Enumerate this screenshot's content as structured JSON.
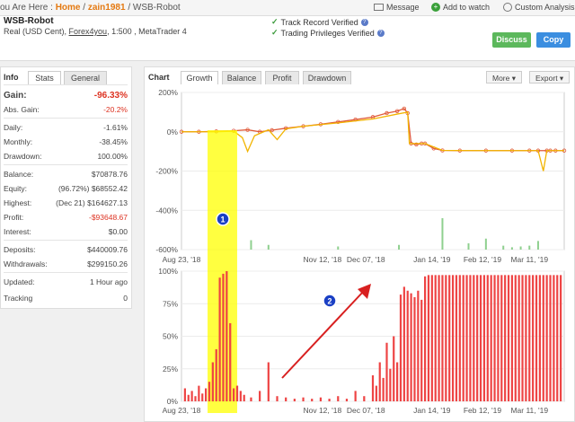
{
  "breadcrumb": {
    "prefix": "ou Are Here : ",
    "home": "Home",
    "sep1": " / ",
    "user": "zain1981",
    "sep2": " / ",
    "current": "WSB-Robot"
  },
  "topnav": {
    "message": "Message",
    "watch": "Add to watch",
    "custom": "Custom Analysis"
  },
  "system": {
    "name": "WSB-Robot",
    "account_type": "Real (USD Cent), ",
    "broker": "Forex4you",
    "details": ", 1:500 , MetaTrader 4",
    "verif1": "Track Record Verified",
    "verif2": "Trading Privileges Verified",
    "qmark": "?"
  },
  "buttons": {
    "discuss": "Discuss",
    "copy": "Copy"
  },
  "info": {
    "title": "Info",
    "tab_stats": "Stats",
    "tab_general": "General",
    "gain_label": "Gain:",
    "gain_value": "-96.33%",
    "abs_gain_label": "Abs. Gain:",
    "abs_gain_value": "-20.2%",
    "daily_label": "Daily:",
    "daily_value": "-1.61%",
    "monthly_label": "Monthly:",
    "monthly_value": "-38.45%",
    "drawdown_label": "Drawdown:",
    "drawdown_value": "100.00%",
    "balance_label": "Balance:",
    "balance_value": "$70878.76",
    "equity_label": "Equity:",
    "equity_value": "(96.72%) $68552.42",
    "highest_label": "Highest:",
    "highest_value": "(Dec 21) $164627.13",
    "profit_label": "Profit:",
    "profit_value": "-$93648.67",
    "interest_label": "Interest:",
    "interest_value": "$0.00",
    "deposits_label": "Deposits:",
    "deposits_value": "$440009.76",
    "withdrawals_label": "Withdrawals:",
    "withdrawals_value": "$299150.26",
    "updated_label": "Updated:",
    "updated_value": "1 Hour ago",
    "tracking_label": "Tracking",
    "tracking_value": "0"
  },
  "chart": {
    "title": "Chart",
    "tabs": [
      "Growth",
      "Balance",
      "Profit",
      "Drawdown"
    ],
    "more": "More ▾",
    "export": "Export ▾",
    "annotation1": "1",
    "annotation2": "2"
  },
  "colors": {
    "accent": "#e47911",
    "discuss": "#5cb85c",
    "copy": "#3b8ee0",
    "growth_line": "#e05a3a",
    "growth_alt": "#f2b400",
    "drawdown_bars": "#ee4444",
    "volume_bars": "#8fd08f",
    "highlight": "#ffff00",
    "arrow": "#d82020"
  },
  "chart_data": [
    {
      "type": "line",
      "ylim": [
        -600,
        200
      ],
      "yticks": [
        "200%",
        "0%",
        "-200%",
        "-400%",
        "-600%"
      ],
      "x_ticks": [
        "Aug 23, '18",
        "Nov 12, '18",
        "Dec 07, '18",
        "Jan 14, '19",
        "Feb 12, '19",
        "Mar 11, '19"
      ],
      "x_tick_days": [
        0,
        81,
        106,
        144,
        173,
        200
      ],
      "x_range_days": [
        0,
        220
      ],
      "series": [
        {
          "x": [
            0,
            10,
            20,
            30,
            38,
            45,
            52,
            60,
            70,
            80,
            90,
            100,
            110,
            118,
            124,
            128,
            130,
            132,
            135,
            138,
            140,
            145,
            150,
            160,
            175,
            190,
            200,
            205,
            210,
            212,
            215,
            220
          ],
          "y": [
            0,
            0,
            2,
            5,
            10,
            0,
            8,
            18,
            28,
            38,
            50,
            62,
            75,
            95,
            105,
            118,
            95,
            -60,
            -65,
            -60,
            -60,
            -85,
            -95,
            -96,
            -96,
            -96,
            -96,
            -96,
            -96,
            -96,
            -96,
            -96
          ]
        },
        {
          "x": [
            0,
            20,
            30,
            35,
            38,
            42,
            50,
            55,
            60,
            70,
            90,
            110,
            124,
            130,
            131,
            140,
            150,
            175,
            200,
            205,
            208,
            210,
            215,
            220
          ],
          "y": [
            0,
            0,
            3,
            -30,
            -100,
            -20,
            10,
            -40,
            15,
            28,
            45,
            65,
            90,
            100,
            -60,
            -60,
            -95,
            -96,
            -96,
            -96,
            -200,
            -96,
            -96,
            -96
          ]
        }
      ],
      "volume": {
        "x": [
          40,
          50,
          90,
          125,
          150,
          165,
          175,
          185,
          190,
          195,
          200,
          205
        ],
        "y": [
          60,
          30,
          20,
          30,
          200,
          40,
          70,
          25,
          15,
          20,
          25,
          55
        ]
      }
    },
    {
      "type": "bar",
      "ylim": [
        0,
        100
      ],
      "yticks": [
        "100%",
        "75%",
        "50%",
        "25%",
        "0%"
      ],
      "x_ticks": [
        "Aug 23, '18",
        "Nov 12, '18",
        "Dec 07, '18",
        "Jan 14, '19",
        "Feb 12, '19",
        "Mar 11, '19"
      ],
      "x_tick_days": [
        0,
        81,
        106,
        144,
        173,
        200
      ],
      "x_range_days": [
        0,
        220
      ],
      "highlight_days": [
        15,
        32
      ],
      "bars": {
        "x": [
          2,
          4,
          6,
          8,
          10,
          12,
          14,
          16,
          18,
          20,
          22,
          24,
          26,
          28,
          30,
          32,
          34,
          36,
          40,
          45,
          50,
          55,
          60,
          65,
          70,
          75,
          80,
          85,
          90,
          95,
          100,
          105,
          110,
          112,
          114,
          116,
          118,
          120,
          122,
          124,
          126,
          128,
          130,
          132,
          134,
          136,
          138,
          140,
          142,
          144,
          146,
          148,
          150,
          152,
          154,
          156,
          158,
          160,
          162,
          164,
          166,
          168,
          170,
          172,
          174,
          176,
          178,
          180,
          182,
          184,
          186,
          188,
          190,
          192,
          194,
          196,
          198,
          200,
          202,
          204,
          206,
          208,
          210,
          212,
          214,
          216,
          218
        ],
        "y": [
          10,
          5,
          8,
          4,
          12,
          6,
          10,
          15,
          30,
          40,
          95,
          98,
          100,
          60,
          10,
          12,
          8,
          5,
          3,
          8,
          30,
          4,
          3,
          2,
          3,
          2,
          3,
          2,
          4,
          2,
          8,
          4,
          20,
          12,
          30,
          18,
          45,
          25,
          50,
          30,
          82,
          88,
          85,
          83,
          80,
          85,
          78,
          96,
          97,
          97,
          97,
          97,
          97,
          97,
          97,
          97,
          97,
          97,
          97,
          97,
          97,
          97,
          97,
          97,
          97,
          97,
          97,
          97,
          97,
          97,
          97,
          97,
          97,
          97,
          97,
          97,
          97,
          97,
          97,
          97,
          97,
          97,
          97,
          97,
          97,
          97,
          97
        ]
      }
    }
  ]
}
